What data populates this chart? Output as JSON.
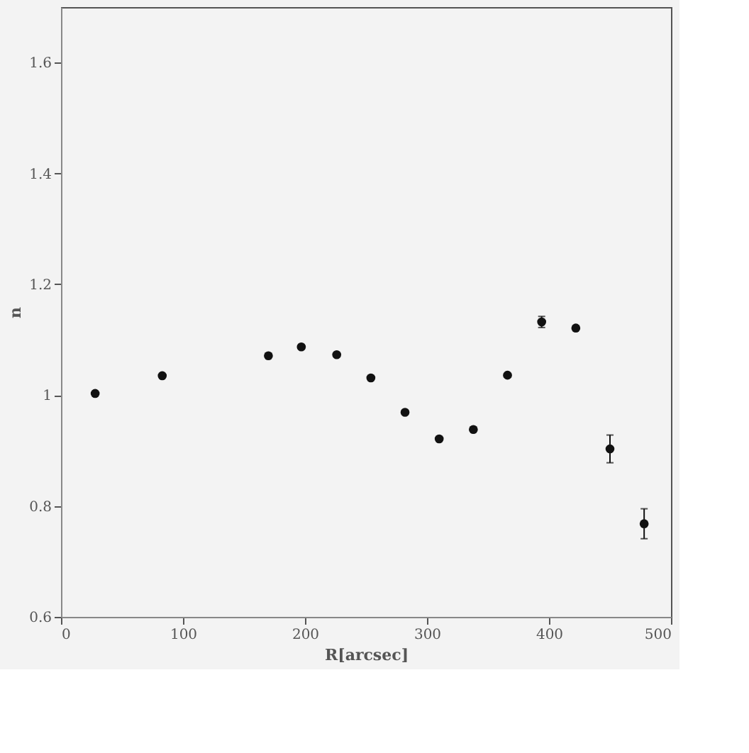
{
  "chart_data": {
    "type": "scatter",
    "xlabel": "R[arcsec]",
    "ylabel": "n",
    "x": [
      28,
      83,
      170,
      197,
      226,
      254,
      282,
      310,
      338,
      366,
      394,
      422,
      450,
      478
    ],
    "values": [
      1.003,
      1.035,
      1.071,
      1.087,
      1.073,
      1.031,
      0.969,
      0.921,
      0.938,
      1.036,
      1.132,
      1.121,
      0.903,
      0.768
    ],
    "errors": [
      null,
      null,
      null,
      null,
      null,
      null,
      null,
      null,
      null,
      null,
      0.01,
      null,
      0.025,
      0.027
    ],
    "color": "#111111",
    "marker": "circle",
    "xlim": [
      0,
      500
    ],
    "xticks": [
      0,
      100,
      200,
      300,
      400,
      500
    ],
    "ylim": [
      0.6,
      1.7
    ],
    "yticks": [
      0.6,
      0.8,
      1.0,
      1.2,
      1.4,
      1.6
    ],
    "grid": false
  }
}
